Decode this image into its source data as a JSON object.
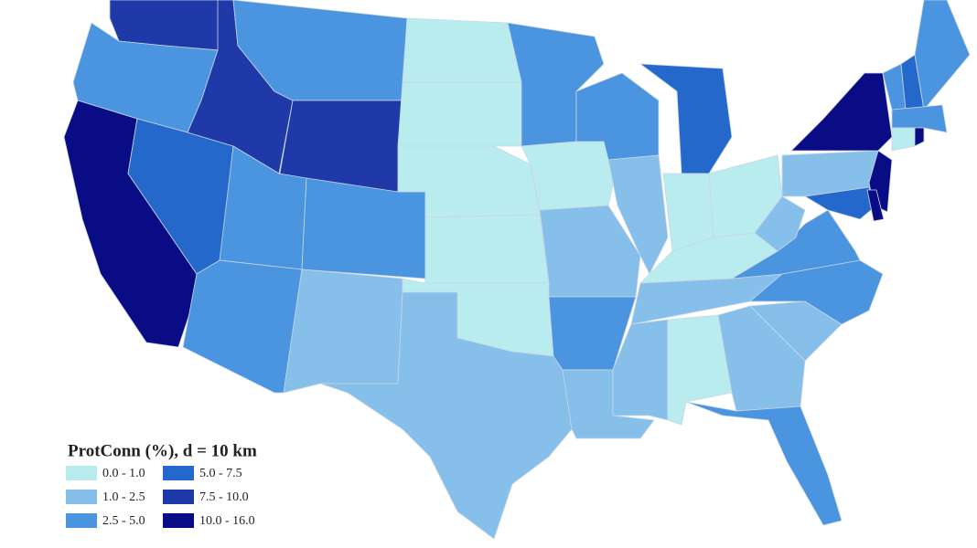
{
  "legend": {
    "title": "ProtConn (%), d = 10 km",
    "items": [
      {
        "label": "0.0 - 1.0",
        "color": "#b8ecee"
      },
      {
        "label": "1.0 - 2.5",
        "color": "#85bfea"
      },
      {
        "label": "2.5 - 5.0",
        "color": "#4a94e0"
      },
      {
        "label": "5.0 - 7.5",
        "color": "#2468cc"
      },
      {
        "label": "7.5 - 10.0",
        "color": "#1f3aa8"
      },
      {
        "label": "10.0 - 16.0",
        "color": "#0a0c85"
      }
    ]
  }
}
